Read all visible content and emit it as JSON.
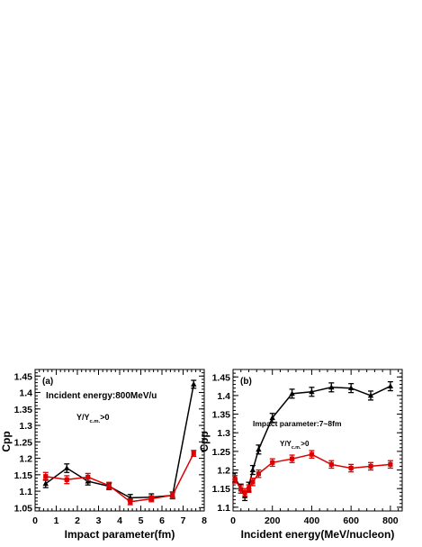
{
  "chart_data": [
    {
      "type": "line",
      "panel_label": "(a)",
      "xlabel": "Impact parameter(fm)",
      "ylabel": "Cpp",
      "xlim": [
        0,
        8
      ],
      "ylim": [
        1.04,
        1.47
      ],
      "x_ticks": [
        0,
        1,
        2,
        3,
        4,
        5,
        6,
        7,
        8
      ],
      "y_ticks": [
        1.05,
        1.1,
        1.15,
        1.2,
        1.25,
        1.3,
        1.35,
        1.4,
        1.45
      ],
      "y_tick_labels": [
        "1.05",
        "1.1",
        "1.15",
        "1.2",
        "1.25",
        "1.3",
        "1.35",
        "1.4",
        "1.45"
      ],
      "annotations": {
        "line1": "Incident energy:800MeV/u",
        "line2_main": "Y/Y",
        "line2_sub": "c.m.",
        "line2_tail": ">0"
      },
      "series": [
        {
          "color": "#000000",
          "marker": "triangle-up",
          "x": [
            0.5,
            1.5,
            2.5,
            3.5,
            4.5,
            5.5,
            6.5,
            7.5
          ],
          "y": [
            1.123,
            1.17,
            1.13,
            1.115,
            1.08,
            1.082,
            1.087,
            1.425
          ],
          "err": [
            0.012,
            0.013,
            0.011,
            0.01,
            0.01,
            0.01,
            0.01,
            0.012
          ]
        },
        {
          "color": "#dd0000",
          "marker": "square",
          "x": [
            0.5,
            1.5,
            2.5,
            3.5,
            4.5,
            5.5,
            6.5,
            7.5
          ],
          "y": [
            1.145,
            1.135,
            1.143,
            1.117,
            1.068,
            1.077,
            1.088,
            1.215
          ],
          "err": [
            0.012,
            0.012,
            0.011,
            0.01,
            0.009,
            0.009,
            0.01,
            0.009
          ]
        }
      ]
    },
    {
      "type": "line",
      "panel_label": "(b)",
      "xlabel": "Incident energy(MeV/nucleon)",
      "ylabel": "Cpp",
      "xlim": [
        0,
        860
      ],
      "ylim": [
        1.09,
        1.47
      ],
      "x_ticks": [
        0,
        200,
        400,
        600,
        800
      ],
      "y_ticks": [
        1.1,
        1.15,
        1.2,
        1.25,
        1.3,
        1.35,
        1.4,
        1.45
      ],
      "y_tick_labels": [
        "1.1",
        "1.15",
        "1.2",
        "1.25",
        "1.3",
        "1.35",
        "1.4",
        "1.45"
      ],
      "annotations": {
        "line1": "Impact parameter:7~8fm",
        "line2_main": "Y/Y",
        "line2_sub": "c.m.",
        "line2_tail": ">0"
      },
      "series": [
        {
          "color": "#000000",
          "marker": "triangle-up",
          "x": [
            10,
            40,
            60,
            80,
            100,
            130,
            200,
            300,
            400,
            500,
            600,
            700,
            800
          ],
          "y": [
            1.18,
            1.15,
            1.13,
            1.155,
            1.2,
            1.255,
            1.34,
            1.405,
            1.41,
            1.422,
            1.42,
            1.4,
            1.425
          ],
          "err": [
            0.012,
            0.012,
            0.012,
            0.012,
            0.012,
            0.012,
            0.012,
            0.012,
            0.012,
            0.012,
            0.012,
            0.012,
            0.012
          ]
        },
        {
          "color": "#dd0000",
          "marker": "square",
          "x": [
            10,
            40,
            60,
            80,
            100,
            130,
            200,
            300,
            400,
            500,
            600,
            700,
            800
          ],
          "y": [
            1.175,
            1.148,
            1.14,
            1.15,
            1.168,
            1.19,
            1.22,
            1.23,
            1.242,
            1.215,
            1.205,
            1.21,
            1.215
          ],
          "err": [
            0.01,
            0.01,
            0.01,
            0.01,
            0.01,
            0.01,
            0.01,
            0.01,
            0.01,
            0.01,
            0.01,
            0.01,
            0.01
          ]
        }
      ]
    }
  ]
}
